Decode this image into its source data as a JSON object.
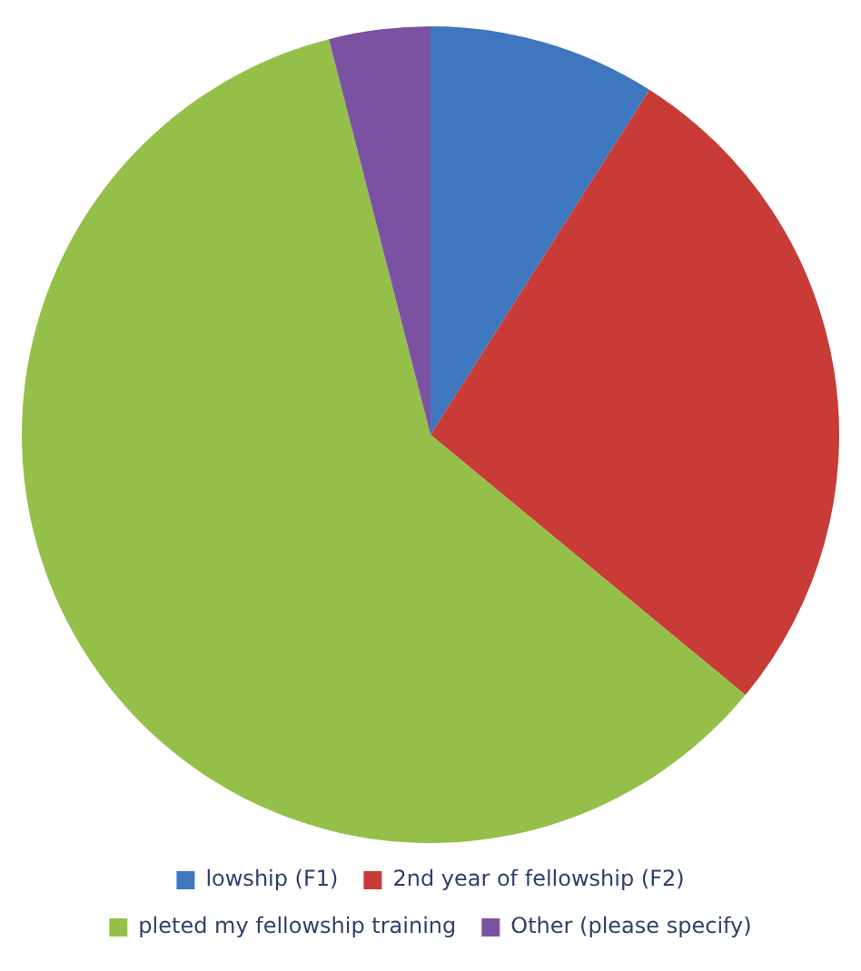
{
  "chart_data": {
    "type": "pie",
    "categories": [
      "lowship (F1)",
      "2nd year of fellowship (F2)",
      "pleted my fellowship training",
      "Other (please specify)"
    ],
    "values": [
      9,
      27,
      60,
      4
    ],
    "colors": [
      "#3f77bf",
      "#c83b36",
      "#94c04a",
      "#7b52a1"
    ],
    "legend": "bottom"
  }
}
